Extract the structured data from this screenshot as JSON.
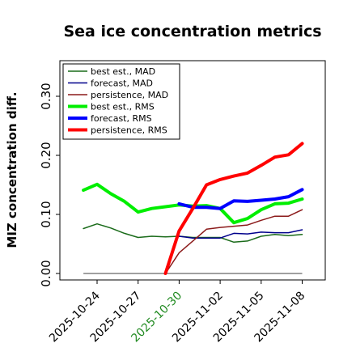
{
  "chart_data": {
    "type": "line",
    "title": "Sea ice concentration metrics",
    "ylabel": "MIZ concentration diff.",
    "xlabel": "",
    "ylim": [
      0,
      0.34
    ],
    "yticks": [
      "0.00",
      "0.10",
      "0.20",
      "0.30"
    ],
    "ytick_values": [
      0.0,
      0.1,
      0.2,
      0.3
    ],
    "x_dates": [
      "2025-10-23",
      "2025-10-24",
      "2025-10-25",
      "2025-10-26",
      "2025-10-27",
      "2025-10-28",
      "2025-10-29",
      "2025-10-30",
      "2025-10-31",
      "2025-11-01",
      "2025-11-02",
      "2025-11-03",
      "2025-11-04",
      "2025-11-05",
      "2025-11-06",
      "2025-11-07",
      "2025-11-08"
    ],
    "xticks": [
      {
        "label": "2025-10-24",
        "date": "2025-10-24",
        "color": "#000000"
      },
      {
        "label": "2025-10-27",
        "date": "2025-10-27",
        "color": "#000000"
      },
      {
        "label": "2025-10-30",
        "date": "2025-10-30",
        "color": "#228b22"
      },
      {
        "label": "2025-11-02",
        "date": "2025-11-02",
        "color": "#000000"
      },
      {
        "label": "2025-11-05",
        "date": "2025-11-05",
        "color": "#000000"
      },
      {
        "label": "2025-11-08",
        "date": "2025-11-08",
        "color": "#000000"
      }
    ],
    "zero_line": {
      "color": "#808080",
      "value": 0.0
    },
    "series": [
      {
        "name": "best est., MAD",
        "color": "#1a6b1a",
        "width": 1.5,
        "x": [
          "2025-10-23",
          "2025-10-24",
          "2025-10-25",
          "2025-10-26",
          "2025-10-27",
          "2025-10-28",
          "2025-10-29",
          "2025-10-30",
          "2025-10-31",
          "2025-11-01",
          "2025-11-02",
          "2025-11-03",
          "2025-11-04",
          "2025-11-05",
          "2025-11-06",
          "2025-11-07",
          "2025-11-08"
        ],
        "y": [
          0.076,
          0.084,
          0.077,
          0.068,
          0.061,
          0.063,
          0.062,
          0.063,
          0.061,
          0.061,
          0.061,
          0.053,
          0.055,
          0.063,
          0.066,
          0.064,
          0.066
        ]
      },
      {
        "name": "forecast, MAD",
        "color": "#00008b",
        "width": 1.5,
        "x": [
          "2025-10-30",
          "2025-10-31",
          "2025-11-01",
          "2025-11-02",
          "2025-11-03",
          "2025-11-04",
          "2025-11-05",
          "2025-11-06",
          "2025-11-07",
          "2025-11-08"
        ],
        "y": [
          0.063,
          0.06,
          0.06,
          0.06,
          0.068,
          0.067,
          0.07,
          0.069,
          0.069,
          0.074
        ]
      },
      {
        "name": "persistence, MAD",
        "color": "#8b1a1a",
        "width": 1.5,
        "x": [
          "2025-10-29",
          "2025-10-30",
          "2025-10-31",
          "2025-11-01",
          "2025-11-02",
          "2025-11-03",
          "2025-11-04",
          "2025-11-05",
          "2025-11-06",
          "2025-11-07",
          "2025-11-08"
        ],
        "y": [
          0.0,
          0.035,
          0.055,
          0.075,
          0.078,
          0.08,
          0.082,
          0.09,
          0.097,
          0.097,
          0.108
        ]
      },
      {
        "name": "best est., RMS",
        "color": "#00ee00",
        "width": 4,
        "x": [
          "2025-10-23",
          "2025-10-24",
          "2025-10-25",
          "2025-10-26",
          "2025-10-27",
          "2025-10-28",
          "2025-10-29",
          "2025-10-30",
          "2025-10-31",
          "2025-11-01",
          "2025-11-02",
          "2025-11-03",
          "2025-11-04",
          "2025-11-05",
          "2025-11-06",
          "2025-11-07",
          "2025-11-08"
        ],
        "y": [
          0.141,
          0.151,
          0.135,
          0.122,
          0.104,
          0.11,
          0.113,
          0.116,
          0.114,
          0.115,
          0.11,
          0.086,
          0.093,
          0.108,
          0.118,
          0.119,
          0.126
        ]
      },
      {
        "name": "forecast, RMS",
        "color": "#0000ff",
        "width": 4,
        "x": [
          "2025-10-30",
          "2025-10-31",
          "2025-11-01",
          "2025-11-02",
          "2025-11-03",
          "2025-11-04",
          "2025-11-05",
          "2025-11-06",
          "2025-11-07",
          "2025-11-08"
        ],
        "y": [
          0.118,
          0.112,
          0.112,
          0.11,
          0.123,
          0.122,
          0.124,
          0.126,
          0.13,
          0.142
        ]
      },
      {
        "name": "persistence, RMS",
        "color": "#ff0000",
        "width": 4,
        "x": [
          "2025-10-29",
          "2025-10-30",
          "2025-10-31",
          "2025-11-01",
          "2025-11-02",
          "2025-11-03",
          "2025-11-04",
          "2025-11-05",
          "2025-11-06",
          "2025-11-07",
          "2025-11-08"
        ],
        "y": [
          0.0,
          0.072,
          0.11,
          0.15,
          0.159,
          0.165,
          0.17,
          0.183,
          0.197,
          0.201,
          0.22
        ]
      }
    ],
    "legend": {
      "placement": "top-left"
    },
    "grid": false
  }
}
